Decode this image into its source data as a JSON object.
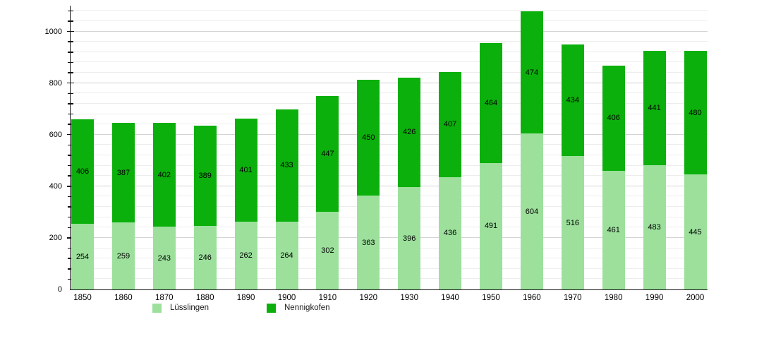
{
  "chart_data": {
    "type": "bar",
    "stacked": true,
    "title": "",
    "categories": [
      "1850",
      "1860",
      "1870",
      "1880",
      "1890",
      "1900",
      "1910",
      "1920",
      "1930",
      "1940",
      "1950",
      "1960",
      "1970",
      "1980",
      "1990",
      "2000"
    ],
    "series": [
      {
        "name": "Lüsslingen",
        "color": "#9ce09c",
        "values": [
          254,
          259,
          243,
          246,
          262,
          264,
          302,
          363,
          396,
          436,
          491,
          604,
          516,
          461,
          483,
          445
        ]
      },
      {
        "name": "Nennigkofen",
        "color": "#0cb00c",
        "values": [
          406,
          387,
          402,
          389,
          401,
          433,
          447,
          450,
          426,
          407,
          464,
          474,
          434,
          406,
          441,
          480
        ]
      }
    ],
    "totals": [
      660,
      646,
      645,
      635,
      663,
      697,
      749,
      813,
      822,
      843,
      955,
      1078,
      950,
      867,
      924,
      925
    ],
    "ylim": [
      0,
      1100
    ],
    "yticks": [
      0,
      200,
      400,
      600,
      800,
      1000
    ],
    "minor_step": 40,
    "grid": true,
    "value_labels": true,
    "legend_position": "bottom",
    "axis_color": "#111111",
    "minor_grid_color": "#ededed",
    "major_grid_color": "#d4d4d4"
  }
}
